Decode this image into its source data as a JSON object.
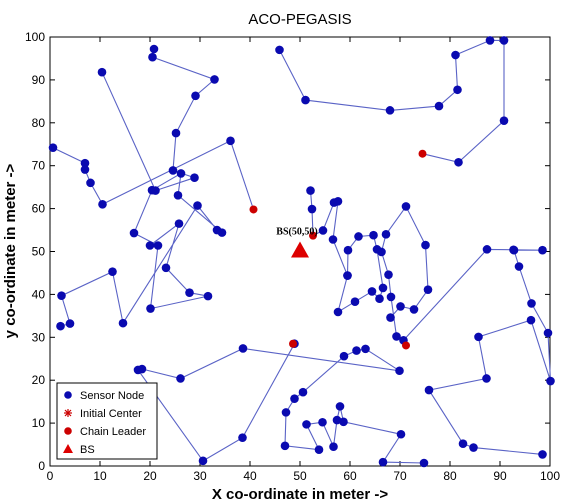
{
  "chart_data": {
    "type": "scatter",
    "title": "ACO-PEGASIS",
    "xlabel": "X co-ordinate in meter ->",
    "ylabel": "y co-ordinate in meter ->",
    "xlim": [
      0,
      100
    ],
    "ylim": [
      0,
      100
    ],
    "xticks": [
      "0",
      "10",
      "20",
      "30",
      "40",
      "50",
      "60",
      "70",
      "80",
      "90",
      "100"
    ],
    "yticks": [
      "0",
      "10",
      "20",
      "30",
      "40",
      "50",
      "60",
      "70",
      "80",
      "90",
      "100"
    ],
    "grid": false,
    "legend_position": "bottom-left",
    "legend": [
      {
        "label": "Sensor Node",
        "marker": "filled-circle",
        "color": "#0a0ab0"
      },
      {
        "label": "Initial Center",
        "marker": "asterisk",
        "color": "#cc0000"
      },
      {
        "label": "Chain Leader",
        "marker": "filled-circle",
        "color": "#cc0000"
      },
      {
        "label": "BS",
        "marker": "triangle",
        "color": "#dd0000"
      }
    ],
    "colors": {
      "sensor": "#0a0ab0",
      "chain_line": "#5a63c6",
      "leader": "#cc0000",
      "bs": "#dd0000"
    },
    "base_station": {
      "x": 50,
      "y": 50,
      "label": "BS(50,50)"
    },
    "chain_leaders": [
      [
        40.7,
        59.8
      ],
      [
        74.5,
        72.8
      ],
      [
        52.6,
        53.7
      ],
      [
        48.6,
        28.5
      ],
      [
        71.2,
        28.1
      ]
    ],
    "chains": [
      [
        [
          20.8,
          97.2
        ],
        [
          20.5,
          95.3
        ],
        [
          32.9,
          90.1
        ],
        [
          29.1,
          86.3
        ],
        [
          25.2,
          77.6
        ],
        [
          24.6,
          68.9
        ],
        [
          28.9,
          67.2
        ],
        [
          21.1,
          64.2
        ],
        [
          10.4,
          91.8
        ]
      ],
      [
        [
          0.6,
          74.2
        ],
        [
          7.0,
          70.6
        ],
        [
          7.0,
          69.1
        ],
        [
          8.1,
          66.0
        ],
        [
          10.5,
          61.0
        ],
        [
          36.1,
          75.8
        ],
        [
          40.7,
          59.8
        ]
      ],
      [
        [
          45.9,
          97.0
        ],
        [
          51.1,
          85.3
        ],
        [
          68.0,
          82.9
        ],
        [
          77.8,
          83.9
        ],
        [
          81.5,
          87.7
        ],
        [
          81.1,
          95.8
        ],
        [
          88.0,
          99.2
        ],
        [
          90.8,
          99.2
        ],
        [
          90.8,
          80.5
        ],
        [
          81.7,
          70.8
        ],
        [
          74.5,
          72.8
        ]
      ],
      [
        [
          2.1,
          32.6
        ],
        [
          4.0,
          33.2
        ],
        [
          2.3,
          39.7
        ],
        [
          12.5,
          45.3
        ],
        [
          14.6,
          33.3
        ],
        [
          29.5,
          60.7
        ],
        [
          33.4,
          55.0
        ],
        [
          34.4,
          54.4
        ],
        [
          25.6,
          63.1
        ],
        [
          26.2,
          68.2
        ],
        [
          20.4,
          64.3
        ],
        [
          16.8,
          54.3
        ],
        [
          21.6,
          51.4
        ],
        [
          20.1,
          36.7
        ],
        [
          31.6,
          39.6
        ],
        [
          27.9,
          40.4
        ],
        [
          23.2,
          46.2
        ],
        [
          25.8,
          56.5
        ],
        [
          20.0,
          51.4
        ]
      ],
      [
        [
          52.1,
          64.2
        ],
        [
          52.4,
          59.9
        ],
        [
          52.6,
          53.7
        ],
        [
          54.6,
          54.9
        ],
        [
          56.8,
          61.4
        ],
        [
          57.6,
          61.7
        ],
        [
          56.6,
          52.8
        ],
        [
          59.5,
          44.4
        ],
        [
          57.6,
          35.9
        ],
        [
          61.0,
          38.3
        ],
        [
          64.4,
          40.7
        ],
        [
          65.9,
          39.0
        ],
        [
          66.6,
          41.5
        ],
        [
          65.4,
          50.5
        ],
        [
          64.7,
          53.8
        ],
        [
          61.7,
          53.5
        ],
        [
          59.6,
          50.3
        ],
        [
          59.5,
          44.4
        ]
      ],
      [
        [
          68.1,
          34.6
        ],
        [
          70.1,
          37.2
        ],
        [
          72.8,
          36.5
        ],
        [
          75.6,
          41.1
        ],
        [
          75.1,
          51.5
        ],
        [
          71.2,
          60.5
        ],
        [
          67.2,
          54.0
        ],
        [
          66.3,
          49.9
        ],
        [
          67.7,
          44.6
        ],
        [
          68.2,
          39.4
        ],
        [
          69.3,
          30.2
        ],
        [
          71.2,
          28.1
        ]
      ],
      [
        [
          18.4,
          22.6
        ],
        [
          26.1,
          20.4
        ],
        [
          38.6,
          27.4
        ],
        [
          69.9,
          22.2
        ],
        [
          63.1,
          27.3
        ],
        [
          61.3,
          26.9
        ],
        [
          58.8,
          25.6
        ],
        [
          50.6,
          17.2
        ],
        [
          48.9,
          15.7
        ],
        [
          47.2,
          12.5
        ],
        [
          47.0,
          4.7
        ],
        [
          53.8,
          3.8
        ],
        [
          51.3,
          9.7
        ],
        [
          54.5,
          10.2
        ],
        [
          56.7,
          4.5
        ],
        [
          57.4,
          10.7
        ],
        [
          58.0,
          13.9
        ],
        [
          58.7,
          10.3
        ],
        [
          70.2,
          7.4
        ],
        [
          66.6,
          0.9
        ],
        [
          74.8,
          0.7
        ]
      ],
      [
        [
          17.6,
          22.4
        ],
        [
          30.6,
          1.2
        ],
        [
          38.5,
          6.6
        ],
        [
          48.9,
          28.5
        ]
      ],
      [
        [
          70.7,
          29.3
        ],
        [
          87.4,
          50.5
        ],
        [
          92.7,
          50.4
        ],
        [
          98.5,
          50.3
        ],
        [
          92.8,
          50.3
        ],
        [
          93.8,
          46.5
        ],
        [
          96.3,
          37.9
        ],
        [
          99.6,
          31.0
        ],
        [
          100.1,
          19.8
        ],
        [
          96.2,
          34.0
        ],
        [
          85.7,
          30.1
        ],
        [
          87.3,
          20.4
        ],
        [
          75.8,
          17.7
        ],
        [
          82.6,
          5.2
        ],
        [
          84.7,
          4.3
        ],
        [
          98.5,
          2.7
        ]
      ]
    ]
  }
}
